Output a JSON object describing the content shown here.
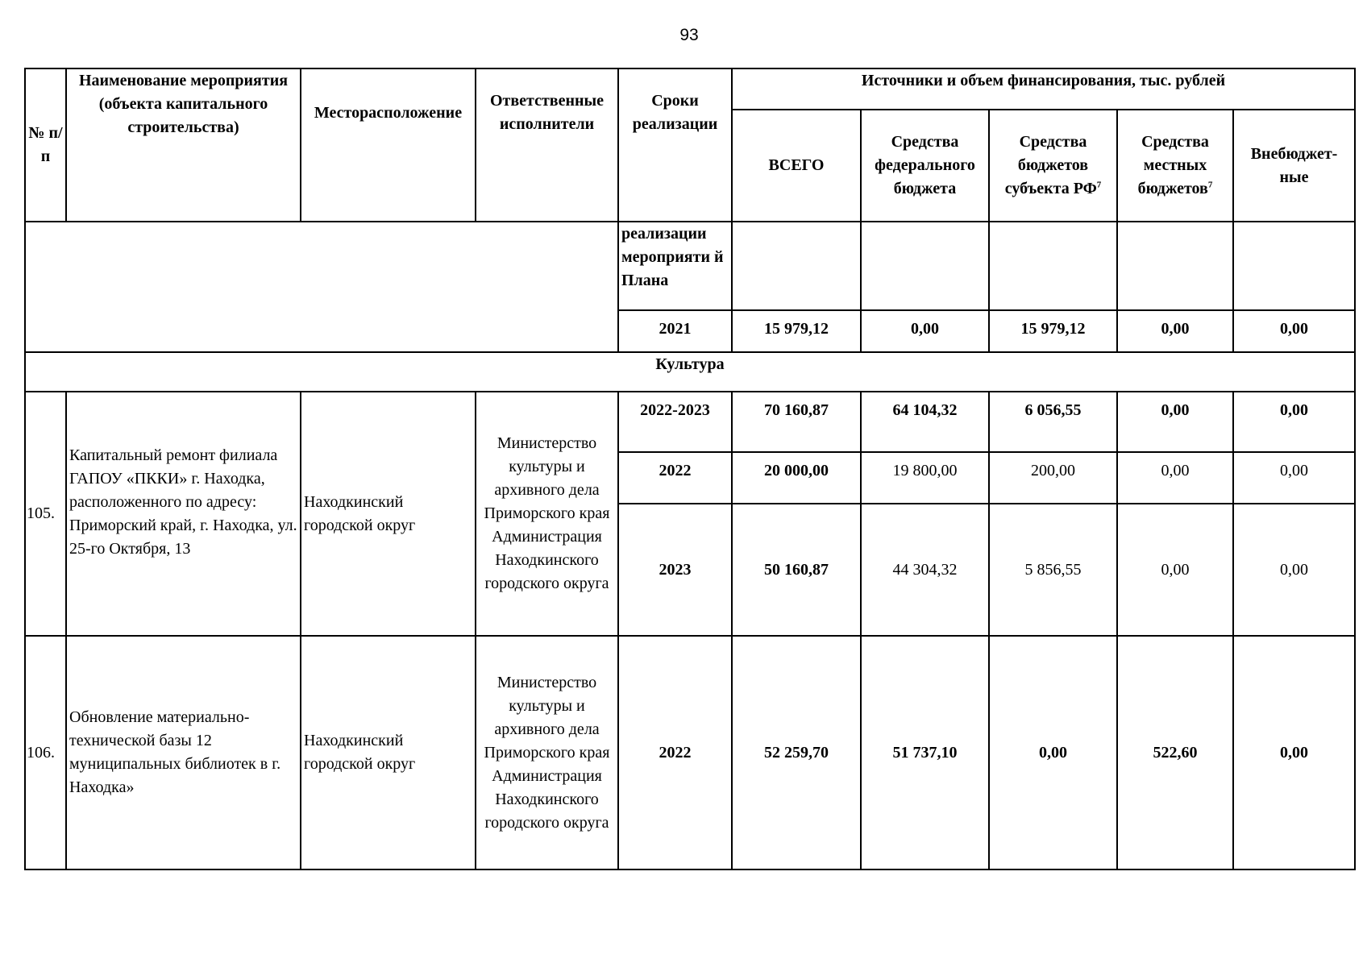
{
  "page_number": "93",
  "header": {
    "num": "№ п/п",
    "name": "Наименование мероприятия (объекта капитального строительства)",
    "location": "Месторасположение",
    "responsible": "Ответственные исполнители",
    "terms": "Сроки реализации",
    "funding": "Источники и объем финансирования, тыс. рублей",
    "total": "ВСЕГО",
    "federal": "Средства федерального бюджета",
    "subject": "Средства бюджетов субъекта РФ",
    "subject_sup": "7",
    "local": "Средства местных бюджетов",
    "local_sup": "7",
    "offbudget": "Внебюджет-ные"
  },
  "carryover": {
    "label": "реализации мероприяти й Плана",
    "year": "2021",
    "values": [
      "15 979,12",
      "0,00",
      "15 979,12",
      "0,00",
      "0,00"
    ]
  },
  "section": "Культура",
  "rows": [
    {
      "num": "105.",
      "name": "Капитальный ремонт филиала ГАПОУ «ПККИ» г. Находка, расположенного по адресу: Приморский край, г. Находка, ул.  25-го Октября, 13",
      "location": "Находкинский городской округ",
      "responsible": "Министерство культуры и архивного дела Приморского края Администрация Находкинского городского округа",
      "years": [
        {
          "year": "2022-2023",
          "values": [
            "70 160,87",
            "64 104,32",
            "6 056,55",
            "0,00",
            "0,00"
          ]
        },
        {
          "year": "2022",
          "values": [
            "20 000,00",
            "19 800,00",
            "200,00",
            "0,00",
            "0,00"
          ]
        },
        {
          "year": "2023",
          "values": [
            "50 160,87",
            "44 304,32",
            "5 856,55",
            "0,00",
            "0,00"
          ]
        }
      ]
    },
    {
      "num": "106.",
      "name": "Обновление материально-технической базы 12 муниципальных библиотек в г. Находка»",
      "location": "Находкинский городской округ",
      "responsible": "Министерство культуры и архивного дела Приморского края Администрация Находкинского городского округа",
      "years": [
        {
          "year": "2022",
          "values": [
            "52 259,70",
            "51 737,10",
            "0,00",
            "522,60",
            "0,00"
          ]
        }
      ]
    }
  ]
}
